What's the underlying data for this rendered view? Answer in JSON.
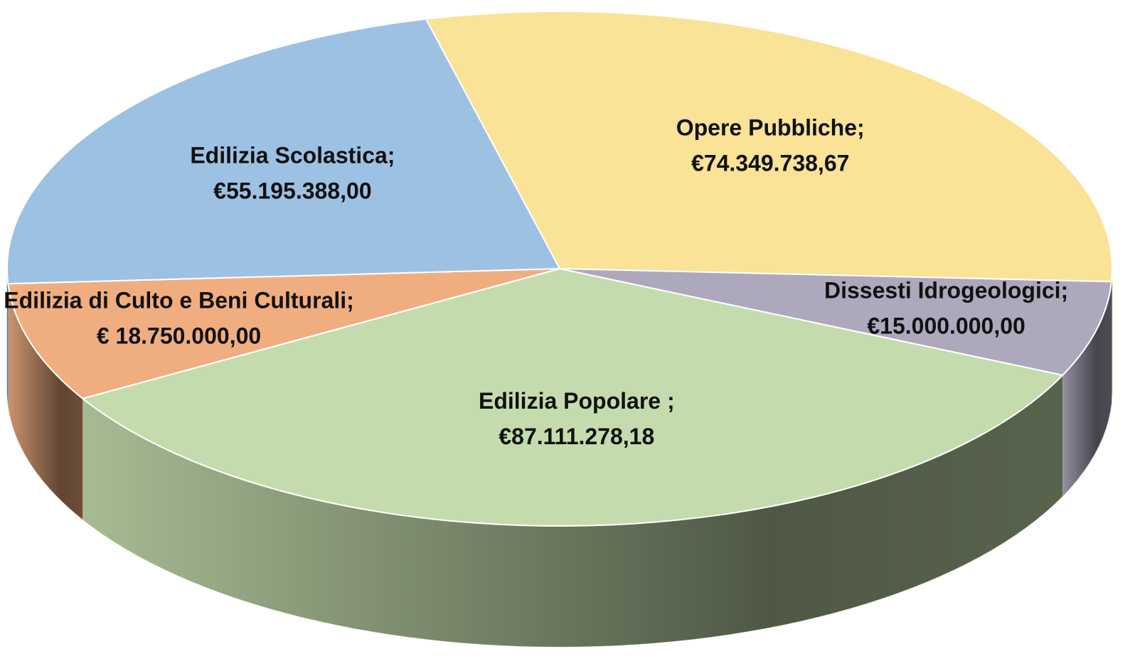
{
  "chart_data": {
    "type": "pie",
    "categories": [
      "Opere Pubbliche;",
      "Dissesti Idrogeologici;",
      "Edilizia Popolare ;",
      "Edilizia di Culto e Beni Culturali;",
      "Edilizia Scolastica;"
    ],
    "values": [
      74349738.67,
      15000000.0,
      87111278.18,
      18750000.0,
      55195388.0
    ],
    "value_labels": [
      "€74.349.738,67",
      "€15.000.000,00",
      "€87.111.278,18",
      "€ 18.750.000,00",
      "€55.195.388,00"
    ],
    "colors": [
      "#fae297",
      "#aea8bd",
      "#c4dcad",
      "#f0ae80",
      "#9dc1e3"
    ]
  }
}
